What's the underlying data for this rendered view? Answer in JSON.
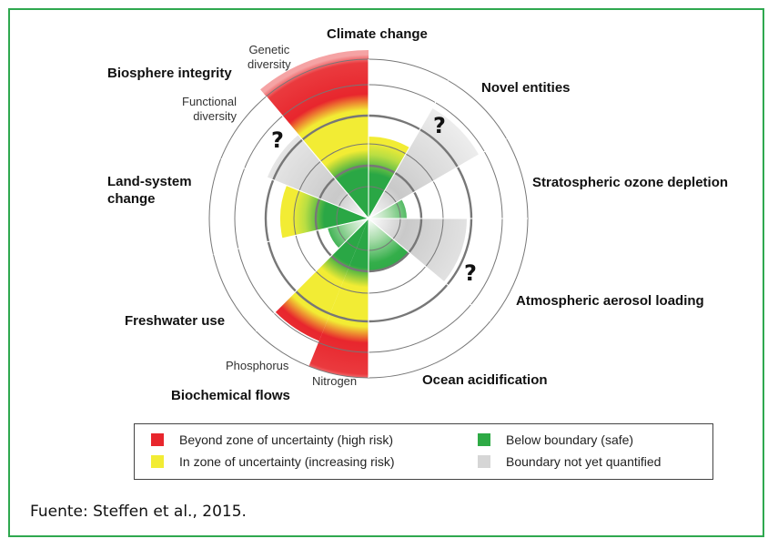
{
  "labels": {
    "climate_change": "Climate change",
    "novel_entities": "Novel entities",
    "ozone": "Stratospheric ozone depletion",
    "aerosol": "Atmospheric aerosol loading",
    "ocean": "Ocean acidification",
    "biochemical": "Biochemical flows",
    "nitrogen": "Nitrogen",
    "phosphorus": "Phosphorus",
    "freshwater": "Freshwater use",
    "land_system": "Land-system\nchange",
    "biosphere": "Biosphere integrity",
    "genetic": "Genetic\ndiversity",
    "functional": "Functional\ndiversity",
    "unknown_mark": "?"
  },
  "legend": {
    "high_risk": "Beyond zone of uncertainty (high risk)",
    "increasing_risk": "In zone of uncertainty (increasing risk)",
    "safe": "Below boundary (safe)",
    "not_quantified": "Boundary not yet quantified"
  },
  "source": "Fuente: Steffen et al., 2015.",
  "colors": {
    "high_risk": "#e8262d",
    "increasing_risk": "#f2ec34",
    "safe": "#2eaa45",
    "not_quantified": "#d6d6d6",
    "frame": "#2fa84f"
  }
}
